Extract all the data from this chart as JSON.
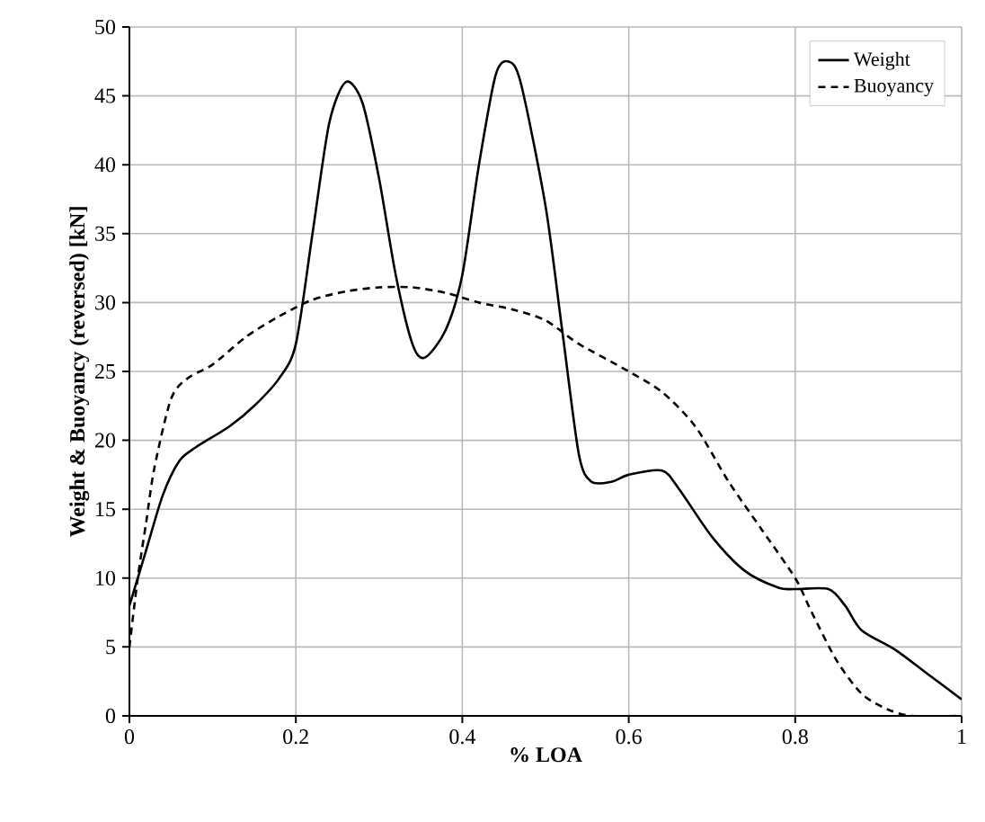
{
  "chart_data": {
    "type": "line",
    "xlabel": "% LOA",
    "ylabel": "Weight & Buoyancy (reversed) [kN]",
    "xlim": [
      0,
      1
    ],
    "ylim": [
      0,
      50
    ],
    "xticks": [
      0,
      0.2,
      0.4,
      0.6,
      0.8,
      1
    ],
    "yticks": [
      0,
      5,
      10,
      15,
      20,
      25,
      30,
      35,
      40,
      45,
      50
    ],
    "grid": true,
    "legend": "top right",
    "marker": "none",
    "series": [
      {
        "name": "Weight",
        "color": "#000000",
        "line_style": "solid",
        "x": [
          0,
          0.02,
          0.04,
          0.06,
          0.08,
          0.12,
          0.15,
          0.18,
          0.2,
          0.22,
          0.24,
          0.26,
          0.28,
          0.3,
          0.32,
          0.34,
          0.355,
          0.38,
          0.4,
          0.42,
          0.44,
          0.455,
          0.47,
          0.5,
          0.52,
          0.54,
          0.555,
          0.58,
          0.6,
          0.64,
          0.66,
          0.7,
          0.74,
          0.78,
          0.8,
          0.84,
          0.86,
          0.88,
          0.92,
          0.96,
          1
        ],
        "values": [
          8,
          12,
          16,
          18.5,
          19.5,
          21,
          22.5,
          24.5,
          27,
          35,
          43,
          46,
          44.5,
          39,
          32,
          27,
          26,
          28,
          32,
          40,
          46.5,
          47.5,
          46,
          37,
          28,
          19,
          17,
          17,
          17.5,
          17.8,
          16.5,
          13,
          10.5,
          9.3,
          9.2,
          9.2,
          8,
          6.2,
          4.8,
          3,
          1.2
        ]
      },
      {
        "name": "Buoyancy",
        "color": "#000000",
        "line_style": "dashed",
        "x": [
          0,
          0.01,
          0.02,
          0.03,
          0.05,
          0.07,
          0.1,
          0.14,
          0.18,
          0.22,
          0.26,
          0.3,
          0.34,
          0.38,
          0.42,
          0.46,
          0.5,
          0.54,
          0.6,
          0.64,
          0.68,
          0.72,
          0.76,
          0.8,
          0.82,
          0.85,
          0.88,
          0.91,
          0.94,
          1
        ],
        "values": [
          5,
          10,
          14,
          18,
          23,
          24.5,
          25.5,
          27.5,
          29,
          30.2,
          30.8,
          31.1,
          31.1,
          30.7,
          30,
          29.5,
          28.7,
          27,
          25,
          23.5,
          21,
          17,
          13.5,
          10,
          7.5,
          4,
          1.6,
          0.5,
          0,
          0
        ]
      }
    ]
  }
}
